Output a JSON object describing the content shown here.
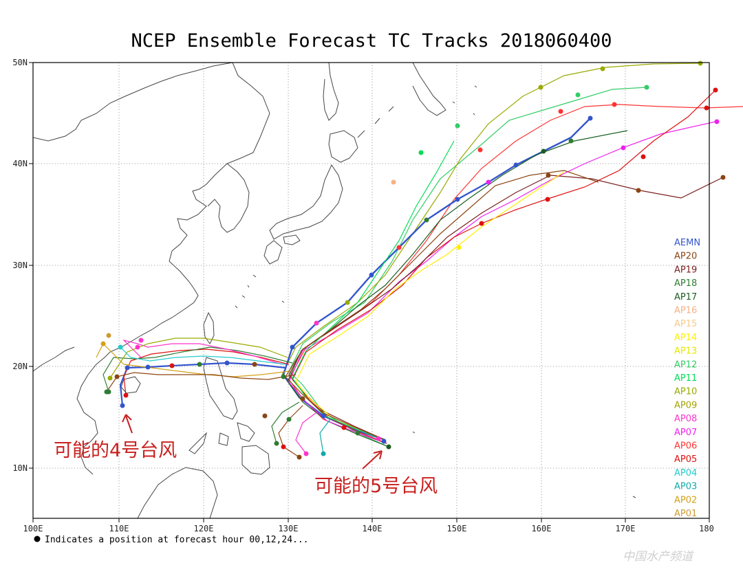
{
  "title": "NCEP Ensemble Forecast TC Tracks 2018060400",
  "lat_labels": [
    "50N",
    "40N",
    "30N",
    "20N",
    "10N"
  ],
  "lon_labels": [
    "100E",
    "110E",
    "120E",
    "130E",
    "140E",
    "150E",
    "160E",
    "170E",
    "180"
  ],
  "legend": [
    {
      "name": "AEMN",
      "color": "#3355cc"
    },
    {
      "name": "AP20",
      "color": "#8b4513"
    },
    {
      "name": "AP19",
      "color": "#7a1f1f"
    },
    {
      "name": "AP18",
      "color": "#2e7d32"
    },
    {
      "name": "AP17",
      "color": "#1b5e20"
    },
    {
      "name": "AP16",
      "color": "#f4b183"
    },
    {
      "name": "AP15",
      "color": "#f7c98a"
    },
    {
      "name": "AP14",
      "color": "#ffee00"
    },
    {
      "name": "AP13",
      "color": "#e6e600"
    },
    {
      "name": "AP12",
      "color": "#33cc66"
    },
    {
      "name": "AP11",
      "color": "#00dd55"
    },
    {
      "name": "AP10",
      "color": "#99aa00"
    },
    {
      "name": "AP09",
      "color": "#a3a300"
    },
    {
      "name": "AP08",
      "color": "#ff33cc"
    },
    {
      "name": "AP07",
      "color": "#ee22ee"
    },
    {
      "name": "AP06",
      "color": "#ff3333"
    },
    {
      "name": "AP05",
      "color": "#dd1111"
    },
    {
      "name": "AP04",
      "color": "#22cccc"
    },
    {
      "name": "AP03",
      "color": "#11aaaa"
    },
    {
      "name": "AP02",
      "color": "#d4a017"
    },
    {
      "name": "AP01",
      "color": "#d09a30"
    }
  ],
  "footnote": "Indicates a position at forecast hour 00,12,24...",
  "annotations": {
    "storm4": "可能的4号台风",
    "storm5": "可能的5号台风"
  },
  "watermark": "中国水产频道"
}
